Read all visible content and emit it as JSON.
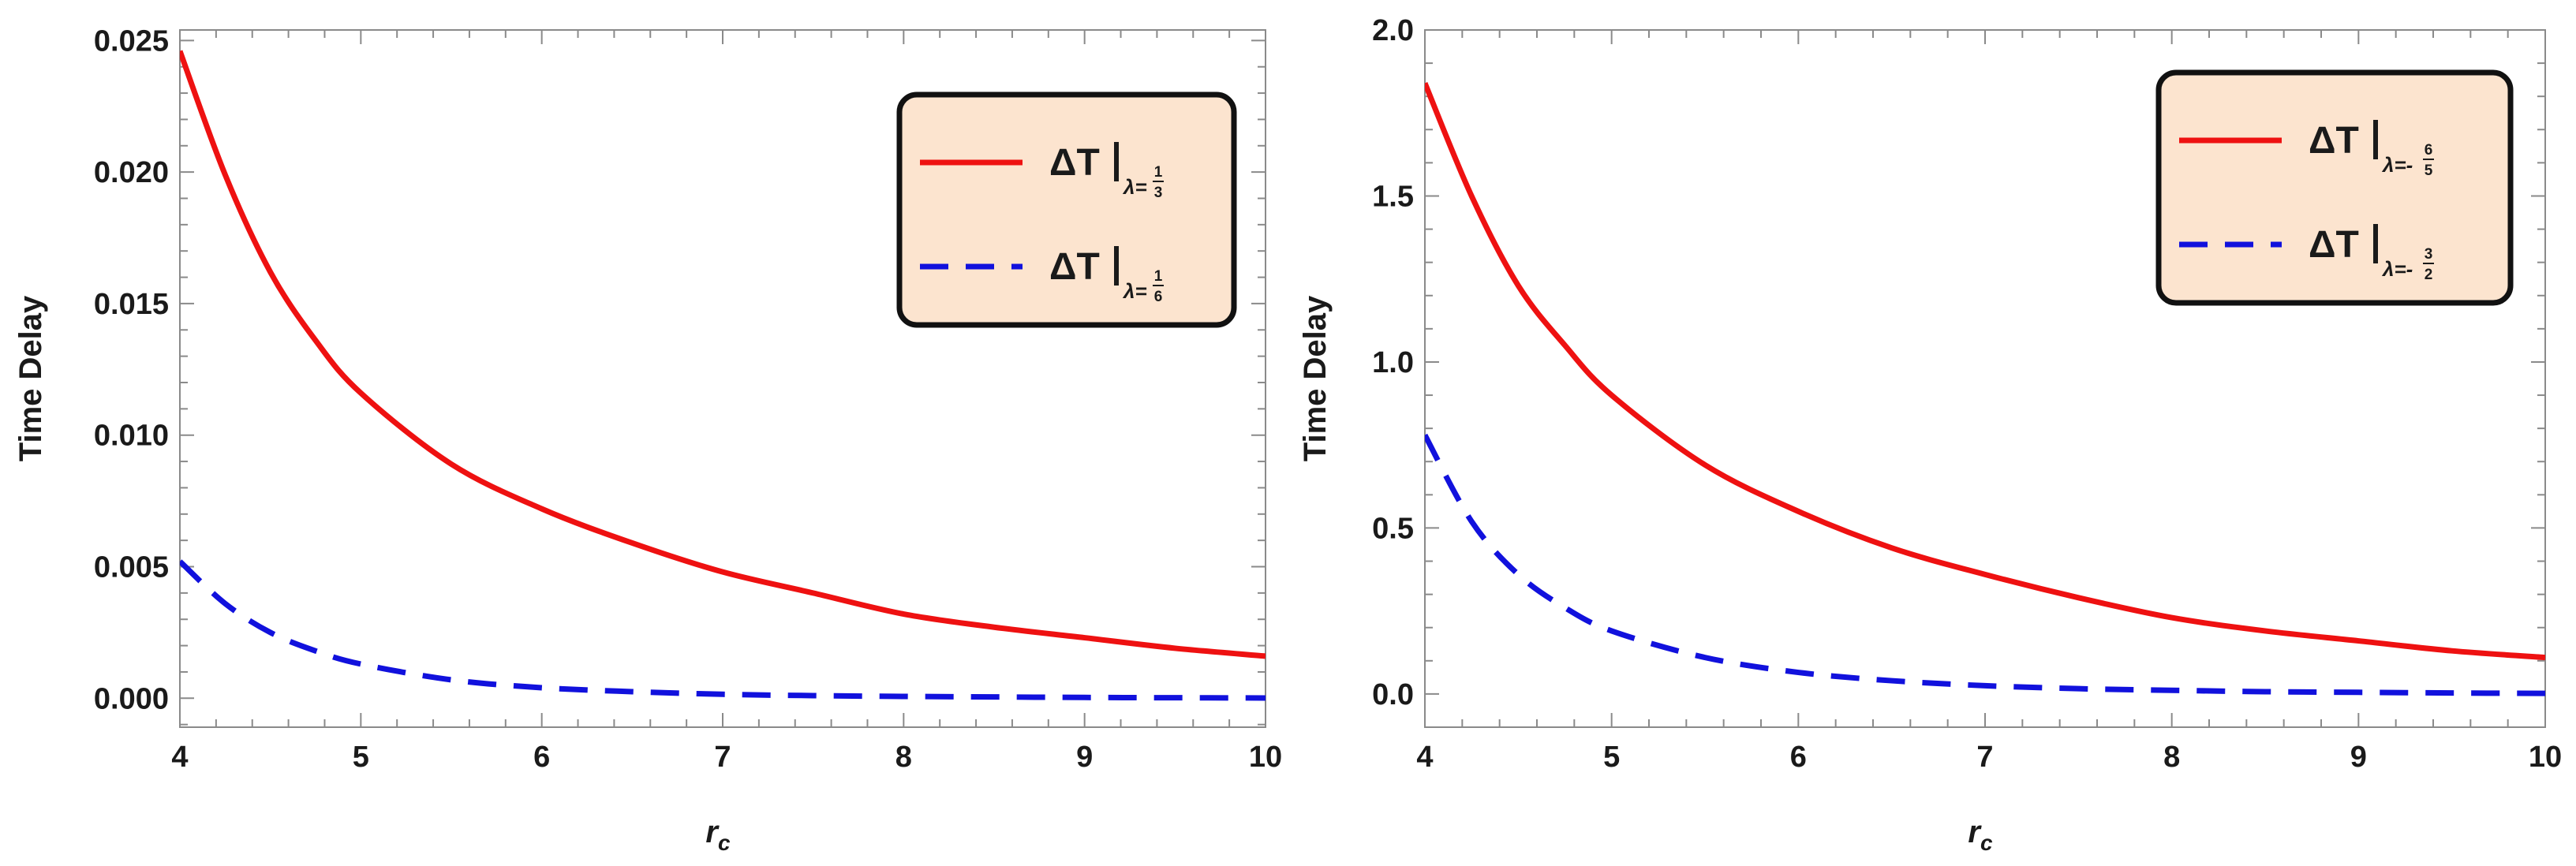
{
  "chart_data": [
    {
      "type": "line",
      "xlabel": "r",
      "xlabel_sub": "c",
      "ylabel": "Time Delay",
      "xlim": [
        4,
        10
      ],
      "ylim": [
        -0.0011,
        0.0254
      ],
      "xticks": [
        4,
        5,
        6,
        7,
        8,
        9,
        10
      ],
      "xtick_labels": [
        "4",
        "5",
        "6",
        "7",
        "8",
        "9",
        "10"
      ],
      "yticks": [
        0,
        0.005,
        0.01,
        0.015,
        0.02,
        0.025
      ],
      "ytick_labels": [
        "0.000",
        "0.005",
        "0.010",
        "0.015",
        "0.020",
        "0.025"
      ],
      "legend_position": "top-right",
      "legend_bg": "#fce4cf",
      "series": [
        {
          "name": "ΔT|λ=1/3",
          "label_main": "ΔT",
          "label_lambda": "λ=",
          "label_sign": "",
          "frac_num": "1",
          "frac_den": "3",
          "color": "#ee1111",
          "dash": "solid",
          "x": [
            4,
            4.25,
            4.5,
            4.75,
            5,
            5.5,
            6,
            6.5,
            7,
            7.5,
            8,
            8.5,
            9,
            9.5,
            10
          ],
          "y": [
            0.0246,
            0.0199,
            0.0162,
            0.0136,
            0.0116,
            0.0089,
            0.0072,
            0.0059,
            0.0048,
            0.004,
            0.0032,
            0.0027,
            0.0023,
            0.0019,
            0.0016
          ]
        },
        {
          "name": "ΔT|λ=1/6",
          "label_main": "ΔT",
          "label_lambda": "λ=",
          "label_sign": "",
          "frac_num": "1",
          "frac_den": "6",
          "color": "#1111dd",
          "dash": "dashed",
          "x": [
            4,
            4.25,
            4.5,
            4.75,
            5,
            5.5,
            6,
            6.5,
            7,
            7.5,
            8,
            8.5,
            9,
            9.5,
            10
          ],
          "y": [
            0.0052,
            0.0036,
            0.0025,
            0.0018,
            0.0013,
            0.0007,
            0.0004,
            0.00025,
            0.00015,
            0.0001,
            7e-05,
            5e-05,
            3e-05,
            2e-05,
            1e-05
          ]
        }
      ]
    },
    {
      "type": "line",
      "xlabel": "r",
      "xlabel_sub": "c",
      "ylabel": "Time Delay",
      "xlim": [
        4,
        10
      ],
      "ylim": [
        -0.1,
        2.0
      ],
      "xticks": [
        4,
        5,
        6,
        7,
        8,
        9,
        10
      ],
      "xtick_labels": [
        "4",
        "5",
        "6",
        "7",
        "8",
        "9",
        "10"
      ],
      "yticks": [
        0,
        0.5,
        1.0,
        1.5,
        2.0
      ],
      "ytick_labels": [
        "0.0",
        "0.5",
        "1.0",
        "1.5",
        "2.0"
      ],
      "legend_position": "top-right",
      "legend_bg": "#fce4cf",
      "series": [
        {
          "name": "ΔT|λ=-6/5",
          "label_main": "ΔT",
          "label_lambda": "λ=",
          "label_sign": "-",
          "frac_num": "6",
          "frac_den": "5",
          "color": "#ee1111",
          "dash": "solid",
          "x": [
            4,
            4.25,
            4.5,
            4.75,
            5,
            5.5,
            6,
            6.5,
            7,
            7.5,
            8,
            8.5,
            9,
            9.5,
            10
          ],
          "y": [
            1.84,
            1.5,
            1.23,
            1.05,
            0.9,
            0.69,
            0.55,
            0.44,
            0.36,
            0.29,
            0.23,
            0.19,
            0.16,
            0.13,
            0.11
          ]
        },
        {
          "name": "ΔT|λ=-3/2",
          "label_main": "ΔT",
          "label_lambda": "λ=",
          "label_sign": "-",
          "frac_num": "3",
          "frac_den": "2",
          "color": "#1111dd",
          "dash": "dashed",
          "x": [
            4,
            4.25,
            4.5,
            4.75,
            5,
            5.5,
            6,
            6.5,
            7,
            7.5,
            8,
            8.5,
            9,
            9.5,
            10
          ],
          "y": [
            0.78,
            0.52,
            0.36,
            0.26,
            0.19,
            0.11,
            0.065,
            0.04,
            0.025,
            0.016,
            0.011,
            0.007,
            0.005,
            0.003,
            0.002
          ]
        }
      ]
    }
  ]
}
